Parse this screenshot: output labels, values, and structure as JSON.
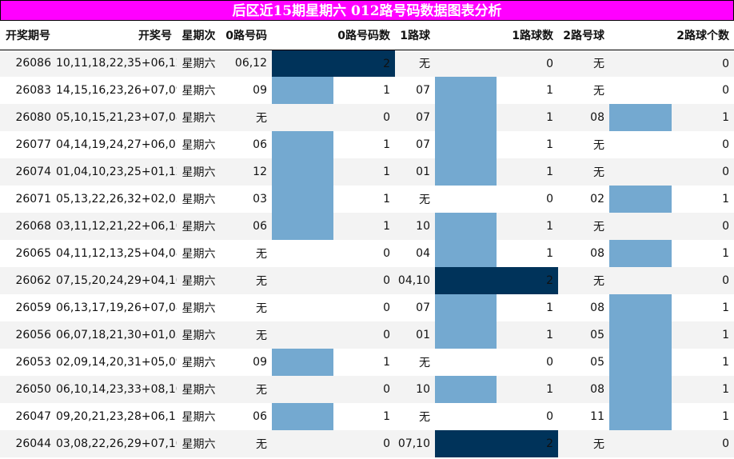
{
  "title": "后区近15期星期六 012路号码数据图表分析",
  "headers": [
    "开奖期号",
    "开奖号",
    "星期次",
    "0路号码",
    "0路号码数",
    "1路球",
    "1路球数",
    "2路号球",
    "2路球个数"
  ],
  "colors": {
    "level1": "#74a9d0",
    "level2": "#00335a",
    "title_bg": "#ff00ff"
  },
  "chart_data": {
    "type": "table",
    "title": "后区近15期星期六 012路号码数据图表分析",
    "columns": [
      "开奖期号",
      "开奖号",
      "星期次",
      "0路号码",
      "0路号码数",
      "1路球",
      "1路球数",
      "2路号球",
      "2路球个数"
    ],
    "rows": [
      {
        "period": "26086",
        "numbers": "10,11,18,22,35+06,12",
        "weekday": "星期六",
        "r0": "06,12",
        "r0n": 2,
        "r1": "无",
        "r1n": 0,
        "r2": "无",
        "r2n": 0
      },
      {
        "period": "26083",
        "numbers": "14,15,16,23,26+07,09",
        "weekday": "星期六",
        "r0": "09",
        "r0n": 1,
        "r1": "07",
        "r1n": 1,
        "r2": "无",
        "r2n": 0
      },
      {
        "period": "26080",
        "numbers": "05,10,15,21,23+07,08",
        "weekday": "星期六",
        "r0": "无",
        "r0n": 0,
        "r1": "07",
        "r1n": 1,
        "r2": "08",
        "r2n": 1
      },
      {
        "period": "26077",
        "numbers": "04,14,19,24,27+06,07",
        "weekday": "星期六",
        "r0": "06",
        "r0n": 1,
        "r1": "07",
        "r1n": 1,
        "r2": "无",
        "r2n": 0
      },
      {
        "period": "26074",
        "numbers": "01,04,10,23,25+01,12",
        "weekday": "星期六",
        "r0": "12",
        "r0n": 1,
        "r1": "01",
        "r1n": 1,
        "r2": "无",
        "r2n": 0
      },
      {
        "period": "26071",
        "numbers": "05,13,22,26,32+02,03",
        "weekday": "星期六",
        "r0": "03",
        "r0n": 1,
        "r1": "无",
        "r1n": 0,
        "r2": "02",
        "r2n": 1
      },
      {
        "period": "26068",
        "numbers": "03,11,12,21,22+06,10",
        "weekday": "星期六",
        "r0": "06",
        "r0n": 1,
        "r1": "10",
        "r1n": 1,
        "r2": "无",
        "r2n": 0
      },
      {
        "period": "26065",
        "numbers": "04,11,12,13,25+04,08",
        "weekday": "星期六",
        "r0": "无",
        "r0n": 0,
        "r1": "04",
        "r1n": 1,
        "r2": "08",
        "r2n": 1
      },
      {
        "period": "26062",
        "numbers": "07,15,20,24,29+04,10",
        "weekday": "星期六",
        "r0": "无",
        "r0n": 0,
        "r1": "04,10",
        "r1n": 2,
        "r2": "无",
        "r2n": 0
      },
      {
        "period": "26059",
        "numbers": "06,13,17,19,26+07,08",
        "weekday": "星期六",
        "r0": "无",
        "r0n": 0,
        "r1": "07",
        "r1n": 1,
        "r2": "08",
        "r2n": 1
      },
      {
        "period": "26056",
        "numbers": "06,07,18,21,30+01,05",
        "weekday": "星期六",
        "r0": "无",
        "r0n": 0,
        "r1": "01",
        "r1n": 1,
        "r2": "05",
        "r2n": 1
      },
      {
        "period": "26053",
        "numbers": "02,09,14,20,31+05,09",
        "weekday": "星期六",
        "r0": "09",
        "r0n": 1,
        "r1": "无",
        "r1n": 0,
        "r2": "05",
        "r2n": 1
      },
      {
        "period": "26050",
        "numbers": "06,10,14,23,33+08,10",
        "weekday": "星期六",
        "r0": "无",
        "r0n": 0,
        "r1": "10",
        "r1n": 1,
        "r2": "08",
        "r2n": 1
      },
      {
        "period": "26047",
        "numbers": "09,20,21,23,28+06,11",
        "weekday": "星期六",
        "r0": "06",
        "r0n": 1,
        "r1": "无",
        "r1n": 0,
        "r2": "11",
        "r2n": 1
      },
      {
        "period": "26044",
        "numbers": "03,08,22,26,29+07,10",
        "weekday": "星期六",
        "r0": "无",
        "r0n": 0,
        "r1": "07,10",
        "r1n": 2,
        "r2": "无",
        "r2n": 0
      }
    ]
  }
}
